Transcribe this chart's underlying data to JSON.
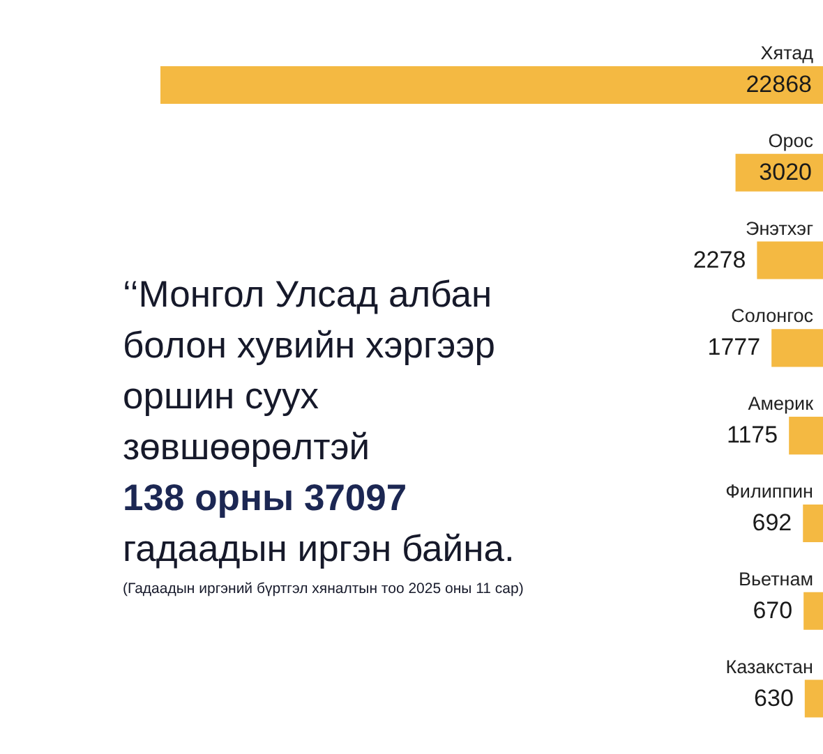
{
  "chart_data": {
    "type": "bar",
    "orientation": "horizontal",
    "categories": [
      "Хятад",
      "Орос",
      "Энэтхэг",
      "Солонгос",
      "Америк",
      "Филиппин",
      "Вьетнам",
      "Казакстан"
    ],
    "values": [
      22868,
      3020,
      2278,
      1777,
      1175,
      692,
      670,
      630
    ],
    "color": "#f4b942",
    "data_labels": true,
    "annotations": [
      "‘‘Монгол Улсад албан\nболон хувийн хэргээр\nоршин суух\nзөвшөөрөлтэй",
      "138 орны 37097",
      "гадаадын иргэн байна.",
      "(Гадаадын иргэний бүртгэл хяналтын тоо 2025 оны 11 сар)"
    ]
  }
}
